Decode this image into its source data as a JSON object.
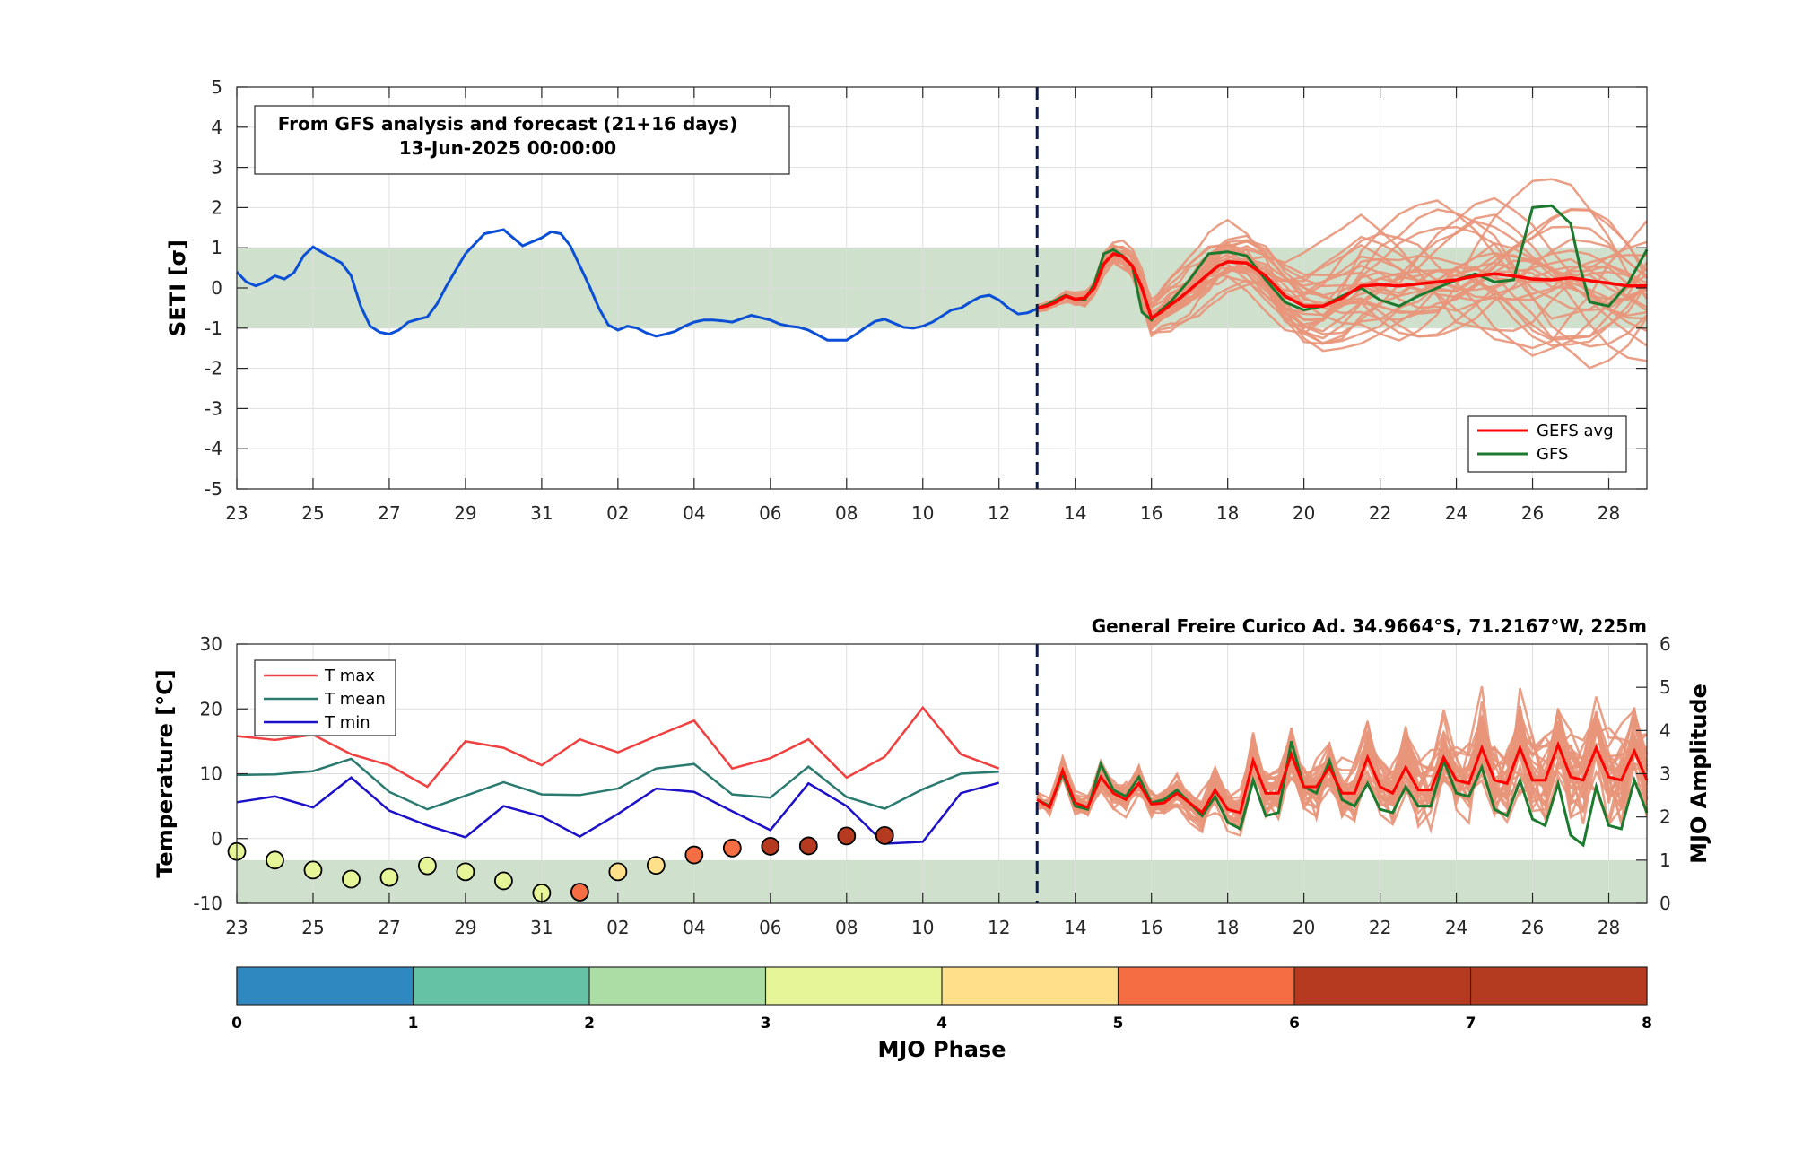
{
  "chart_data": [
    {
      "type": "line",
      "ylabel": "SETI [σ]",
      "ylim": [
        -5,
        5
      ],
      "y_ticks": [
        "5",
        "4",
        "3",
        "2",
        "1",
        "0",
        "-1",
        "-2",
        "-3",
        "-4",
        "-5"
      ],
      "x_range_days": [
        -21,
        16
      ],
      "x_tick_labels": [
        "23",
        "25",
        "27",
        "29",
        "31",
        "02",
        "04",
        "06",
        "08",
        "10",
        "12",
        "14",
        "16",
        "18",
        "20",
        "22",
        "24",
        "26",
        "28"
      ],
      "normal_band": [
        -1,
        1
      ],
      "forecast_start_label": "13",
      "info_box": {
        "line1": "From GFS analysis and forecast (21+16 days)",
        "line2": "13-Jun-2025 00:00:00"
      },
      "legend": {
        "placement": "bottom-right",
        "avg_label": "GEFS avg",
        "gfs_label": "GFS"
      },
      "colors": {
        "analysis": "#0a4fd6",
        "gefs_avg": "#ff0000",
        "gfs": "#1b7a2e",
        "members": "#e8957a",
        "band": "#cfe0cc",
        "forecast_marker": "#0c1a4d"
      },
      "analysis_series": {
        "x": [
          -21,
          -20.75,
          -20.5,
          -20.25,
          -20,
          -19.75,
          -19.5,
          -19.25,
          -19,
          -18.75,
          -18.5,
          -18.25,
          -18,
          -17.75,
          -17.5,
          -17.25,
          -17,
          -16.75,
          -16.5,
          -16.25,
          -16,
          -15.75,
          -15.5,
          -15.25,
          -15,
          -14.5,
          -14,
          -13.75,
          -13.5,
          -13.25,
          -13,
          -12.75,
          -12.5,
          -12.25,
          -12,
          -11.75,
          -11.5,
          -11.25,
          -11,
          -10.75,
          -10.5,
          -10.25,
          -10,
          -9.75,
          -9.5,
          -9.25,
          -9,
          -8.75,
          -8.5,
          -8.25,
          -8,
          -7.5,
          -7,
          -6.75,
          -6.5,
          -6.25,
          -6,
          -5.5,
          -5,
          -4.75,
          -4.5,
          -4.25,
          -4,
          -3.75,
          -3.5,
          -3.25,
          -3,
          -2.75,
          -2.5,
          -2.25,
          -2,
          -1.75,
          -1.5,
          -1.25,
          -1,
          -0.75,
          -0.5,
          -0.25,
          0
        ],
        "y": [
          0.4,
          0.15,
          0.05,
          0.15,
          0.3,
          0.22,
          0.38,
          0.8,
          1.02,
          0.88,
          0.75,
          0.62,
          0.3,
          -0.45,
          -0.95,
          -1.1,
          -1.15,
          -1.05,
          -0.85,
          -0.78,
          -0.72,
          -0.4,
          0.05,
          0.45,
          0.85,
          1.35,
          1.45,
          1.25,
          1.05,
          1.15,
          1.25,
          1.4,
          1.35,
          1.05,
          0.55,
          0.05,
          -0.5,
          -0.92,
          -1.05,
          -0.95,
          -1.0,
          -1.12,
          -1.2,
          -1.15,
          -1.08,
          -0.95,
          -0.85,
          -0.8,
          -0.8,
          -0.82,
          -0.85,
          -0.68,
          -0.8,
          -0.9,
          -0.95,
          -0.98,
          -1.05,
          -1.3,
          -1.3,
          -1.15,
          -0.98,
          -0.83,
          -0.78,
          -0.88,
          -0.98,
          -1.0,
          -0.95,
          -0.85,
          -0.7,
          -0.55,
          -0.5,
          -0.35,
          -0.22,
          -0.18,
          -0.3,
          -0.5,
          -0.65,
          -0.62,
          -0.52
        ]
      },
      "gefs_avg": {
        "x": [
          0,
          0.25,
          0.5,
          0.75,
          1,
          1.25,
          1.5,
          1.75,
          2,
          2.25,
          2.5,
          2.75,
          3,
          3.25,
          3.5,
          3.75,
          4,
          4.25,
          4.5,
          4.75,
          5,
          5.5,
          6,
          6.5,
          7,
          7.5,
          8,
          8.5,
          9,
          9.5,
          10,
          10.5,
          11,
          11.5,
          12,
          12.5,
          13,
          13.5,
          14,
          14.5,
          15,
          15.5,
          16
        ],
        "y": [
          -0.5,
          -0.45,
          -0.35,
          -0.2,
          -0.28,
          -0.25,
          0.0,
          0.6,
          0.85,
          0.78,
          0.55,
          0.0,
          -0.75,
          -0.6,
          -0.42,
          -0.25,
          -0.05,
          0.15,
          0.35,
          0.55,
          0.65,
          0.62,
          0.3,
          -0.2,
          -0.45,
          -0.45,
          -0.25,
          0.05,
          0.08,
          0.05,
          0.1,
          0.15,
          0.2,
          0.3,
          0.35,
          0.3,
          0.22,
          0.2,
          0.25,
          0.18,
          0.12,
          0.05,
          0.05
        ]
      },
      "gfs": {
        "x": [
          0,
          0.25,
          0.5,
          0.75,
          1,
          1.25,
          1.5,
          1.75,
          2,
          2.25,
          2.5,
          2.75,
          3,
          3.25,
          3.5,
          4,
          4.5,
          5,
          5.5,
          6,
          6.5,
          7,
          7.5,
          8,
          8.5,
          9,
          9.5,
          10,
          10.5,
          11,
          11.5,
          12,
          12.5,
          13,
          13.5,
          14,
          14.25,
          14.5,
          15,
          15.5,
          16
        ],
        "y": [
          -0.5,
          -0.42,
          -0.3,
          -0.18,
          -0.28,
          -0.3,
          0.1,
          0.85,
          0.95,
          0.8,
          0.55,
          -0.6,
          -0.8,
          -0.55,
          -0.35,
          0.2,
          0.85,
          0.9,
          0.8,
          0.2,
          -0.35,
          -0.55,
          -0.45,
          -0.2,
          0.0,
          -0.3,
          -0.45,
          -0.2,
          0.0,
          0.2,
          0.35,
          0.15,
          0.2,
          2.0,
          2.05,
          1.6,
          0.5,
          -0.35,
          -0.45,
          0.1,
          0.95
        ]
      },
      "member_count": 30
    },
    {
      "type": "line",
      "ylabel": "Temperature [°C]",
      "ylim": [
        -10,
        30
      ],
      "y_ticks": [
        "30",
        "20",
        "10",
        "0",
        "-10"
      ],
      "y2label": "MJO Amplitude",
      "y2lim": [
        0,
        6
      ],
      "y2_ticks": [
        "6",
        "5",
        "4",
        "3",
        "2",
        "1",
        "0"
      ],
      "x_tick_labels": [
        "23",
        "25",
        "27",
        "29",
        "31",
        "02",
        "04",
        "06",
        "08",
        "10",
        "12",
        "14",
        "16",
        "18",
        "20",
        "22",
        "24",
        "26",
        "28"
      ],
      "station_title": "General Freire Curico Ad. 34.9664°S, 71.2167°W, 225m",
      "legend": {
        "placement": "top-left",
        "entries": [
          "T max",
          "T mean",
          "T min"
        ]
      },
      "amplitude_band": [
        0,
        1
      ],
      "colors": {
        "tmax": "#f04040",
        "tmean": "#2a7a70",
        "tmin": "#1c10c8",
        "members": "#e8957a",
        "ens_avg": "#ff0000",
        "gfs": "#1b7a2e"
      },
      "x": [
        -21,
        -20,
        -19,
        -18,
        -17,
        -16,
        -15,
        -14,
        -13,
        -12,
        -11,
        -10,
        -9,
        -8,
        -7,
        -6,
        -5,
        -4,
        -3,
        -2,
        -1
      ],
      "tmax": [
        15.8,
        15.2,
        16,
        13,
        11.3,
        8,
        15,
        14,
        11.3,
        15.3,
        13.3,
        15.8,
        18.2,
        10.8,
        12.4,
        15.3,
        9.4,
        12.6,
        20.2,
        13,
        10.8
      ],
      "tmean": [
        9.8,
        9.9,
        10.4,
        12.3,
        7.2,
        4.5,
        6.6,
        8.7,
        6.8,
        6.7,
        7.7,
        10.8,
        11.5,
        6.8,
        6.3,
        11.1,
        6.4,
        4.6,
        7.6,
        10,
        10.3
      ],
      "tmin": [
        5.6,
        6.5,
        4.8,
        9.4,
        4.3,
        2.0,
        0.2,
        5.0,
        3.4,
        0.3,
        3.8,
        7.7,
        7.2,
        4.2,
        1.3,
        8.5,
        5.0,
        -0.8,
        -0.5,
        7.0,
        8.6
      ],
      "mjo": {
        "x": [
          -21,
          -20,
          -19,
          -18,
          -17,
          -16,
          -15,
          -14,
          -13,
          -12,
          -11,
          -10,
          -9,
          -8,
          -7,
          -6,
          -5,
          -4
        ],
        "amplitude": [
          1.2,
          1.0,
          0.77,
          0.56,
          0.6,
          0.87,
          0.73,
          0.52,
          0.24,
          0.26,
          0.73,
          0.88,
          1.12,
          1.28,
          1.32,
          1.33,
          1.56,
          1.57
        ],
        "phase": [
          3.5,
          3.5,
          3.5,
          3.5,
          3.5,
          3.5,
          3.5,
          3.5,
          3.5,
          5.5,
          4.5,
          4.5,
          5.5,
          5.5,
          6.5,
          6.5,
          6.5,
          6.5
        ]
      },
      "forecast_avg": {
        "x": [
          0,
          0.33,
          0.67,
          1,
          1.33,
          1.67,
          2,
          2.33,
          2.67,
          3,
          3.33,
          3.67,
          4,
          4.33,
          4.67,
          5,
          5.33,
          5.67,
          6,
          6.33,
          6.67,
          7,
          7.33,
          7.67,
          8,
          8.33,
          8.67,
          9,
          9.33,
          9.67,
          10,
          10.33,
          10.67,
          11,
          11.33,
          11.67,
          12,
          12.33,
          12.67,
          13,
          13.33,
          13.67,
          14,
          14.33,
          14.67,
          15,
          15.33,
          15.67,
          16
        ],
        "y": [
          6,
          4.8,
          10.5,
          5.5,
          4.8,
          9.5,
          7,
          6,
          8.5,
          5.3,
          5.5,
          7,
          5.5,
          4,
          7.5,
          4.5,
          4,
          12,
          7,
          7,
          13,
          8,
          8,
          11,
          7,
          7,
          12.5,
          8,
          7,
          11,
          7.5,
          7.5,
          12.5,
          9,
          8.5,
          14,
          9,
          8.5,
          14,
          9,
          9,
          14.5,
          9.5,
          9,
          14,
          9.5,
          9,
          13.5,
          9
        ]
      },
      "forecast_gfs": {
        "x": [
          0,
          0.33,
          0.67,
          1,
          1.33,
          1.67,
          2,
          2.33,
          2.67,
          3,
          3.33,
          3.67,
          4,
          4.33,
          4.67,
          5,
          5.33,
          5.67,
          6,
          6.33,
          6.67,
          7,
          7.33,
          7.67,
          8,
          8.33,
          8.67,
          9,
          9.33,
          9.67,
          10,
          10.33,
          10.67,
          11,
          11.33,
          11.67,
          12,
          12.33,
          12.67,
          13,
          13.33,
          13.67,
          14,
          14.33,
          14.67,
          15,
          15.33,
          15.67,
          16
        ],
        "y": [
          6,
          5,
          10,
          5,
          4.5,
          11.5,
          7.5,
          6.5,
          9.5,
          5.5,
          6,
          7.5,
          5.5,
          3.5,
          6.5,
          2.5,
          1.5,
          9,
          3.5,
          4,
          15,
          8,
          7,
          12,
          6,
          5,
          8.5,
          4.5,
          4,
          8,
          5,
          5,
          12,
          7,
          6.5,
          11,
          4.5,
          3.5,
          9,
          3,
          2,
          8.5,
          0.5,
          -1,
          8,
          2,
          1.5,
          9,
          4
        ]
      },
      "member_count": 30
    }
  ],
  "colorbar": {
    "label": "MJO Phase",
    "ticks": [
      "0",
      "1",
      "2",
      "3",
      "4",
      "5",
      "6",
      "7",
      "8"
    ],
    "colors": [
      "#2f89c0",
      "#66c2a5",
      "#abdda4",
      "#e6f598",
      "#fee08b",
      "#f46d43",
      "#b63a1f",
      "#b53b20",
      "#cf7fdd"
    ]
  }
}
